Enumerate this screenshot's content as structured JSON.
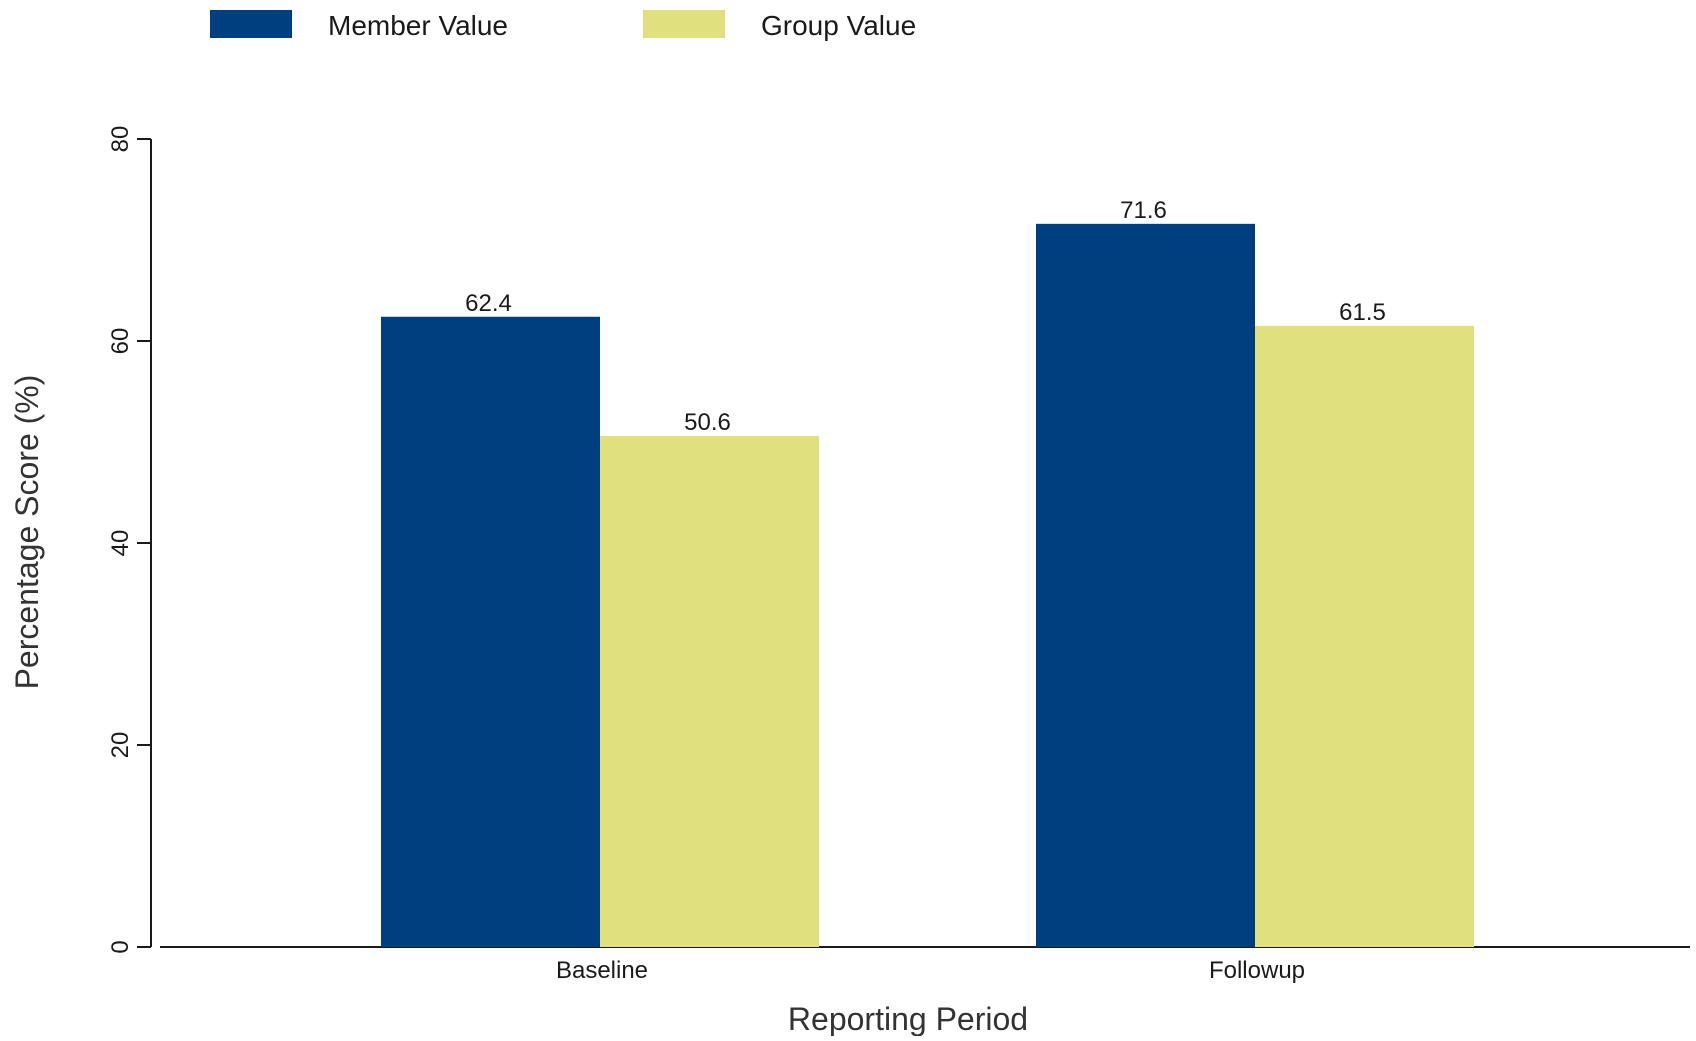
{
  "chart_data": {
    "type": "bar",
    "categories": [
      "Baseline",
      "Followup"
    ],
    "series": [
      {
        "name": "Member Value",
        "values": [
          62.4,
          71.6
        ],
        "color": "#003f7f"
      },
      {
        "name": "Group Value",
        "values": [
          50.6,
          61.5
        ],
        "color": "#e0e07f"
      }
    ],
    "data_labels": [
      [
        "62.4",
        "71.6"
      ],
      [
        "50.6",
        "61.5"
      ]
    ],
    "xlabel": "Reporting Period",
    "ylabel": "Percentage Score (%)",
    "ylim": [
      0,
      80
    ],
    "yticks": [
      "0",
      "20",
      "40",
      "60",
      "80"
    ],
    "grid": false,
    "legend": "top-left"
  }
}
